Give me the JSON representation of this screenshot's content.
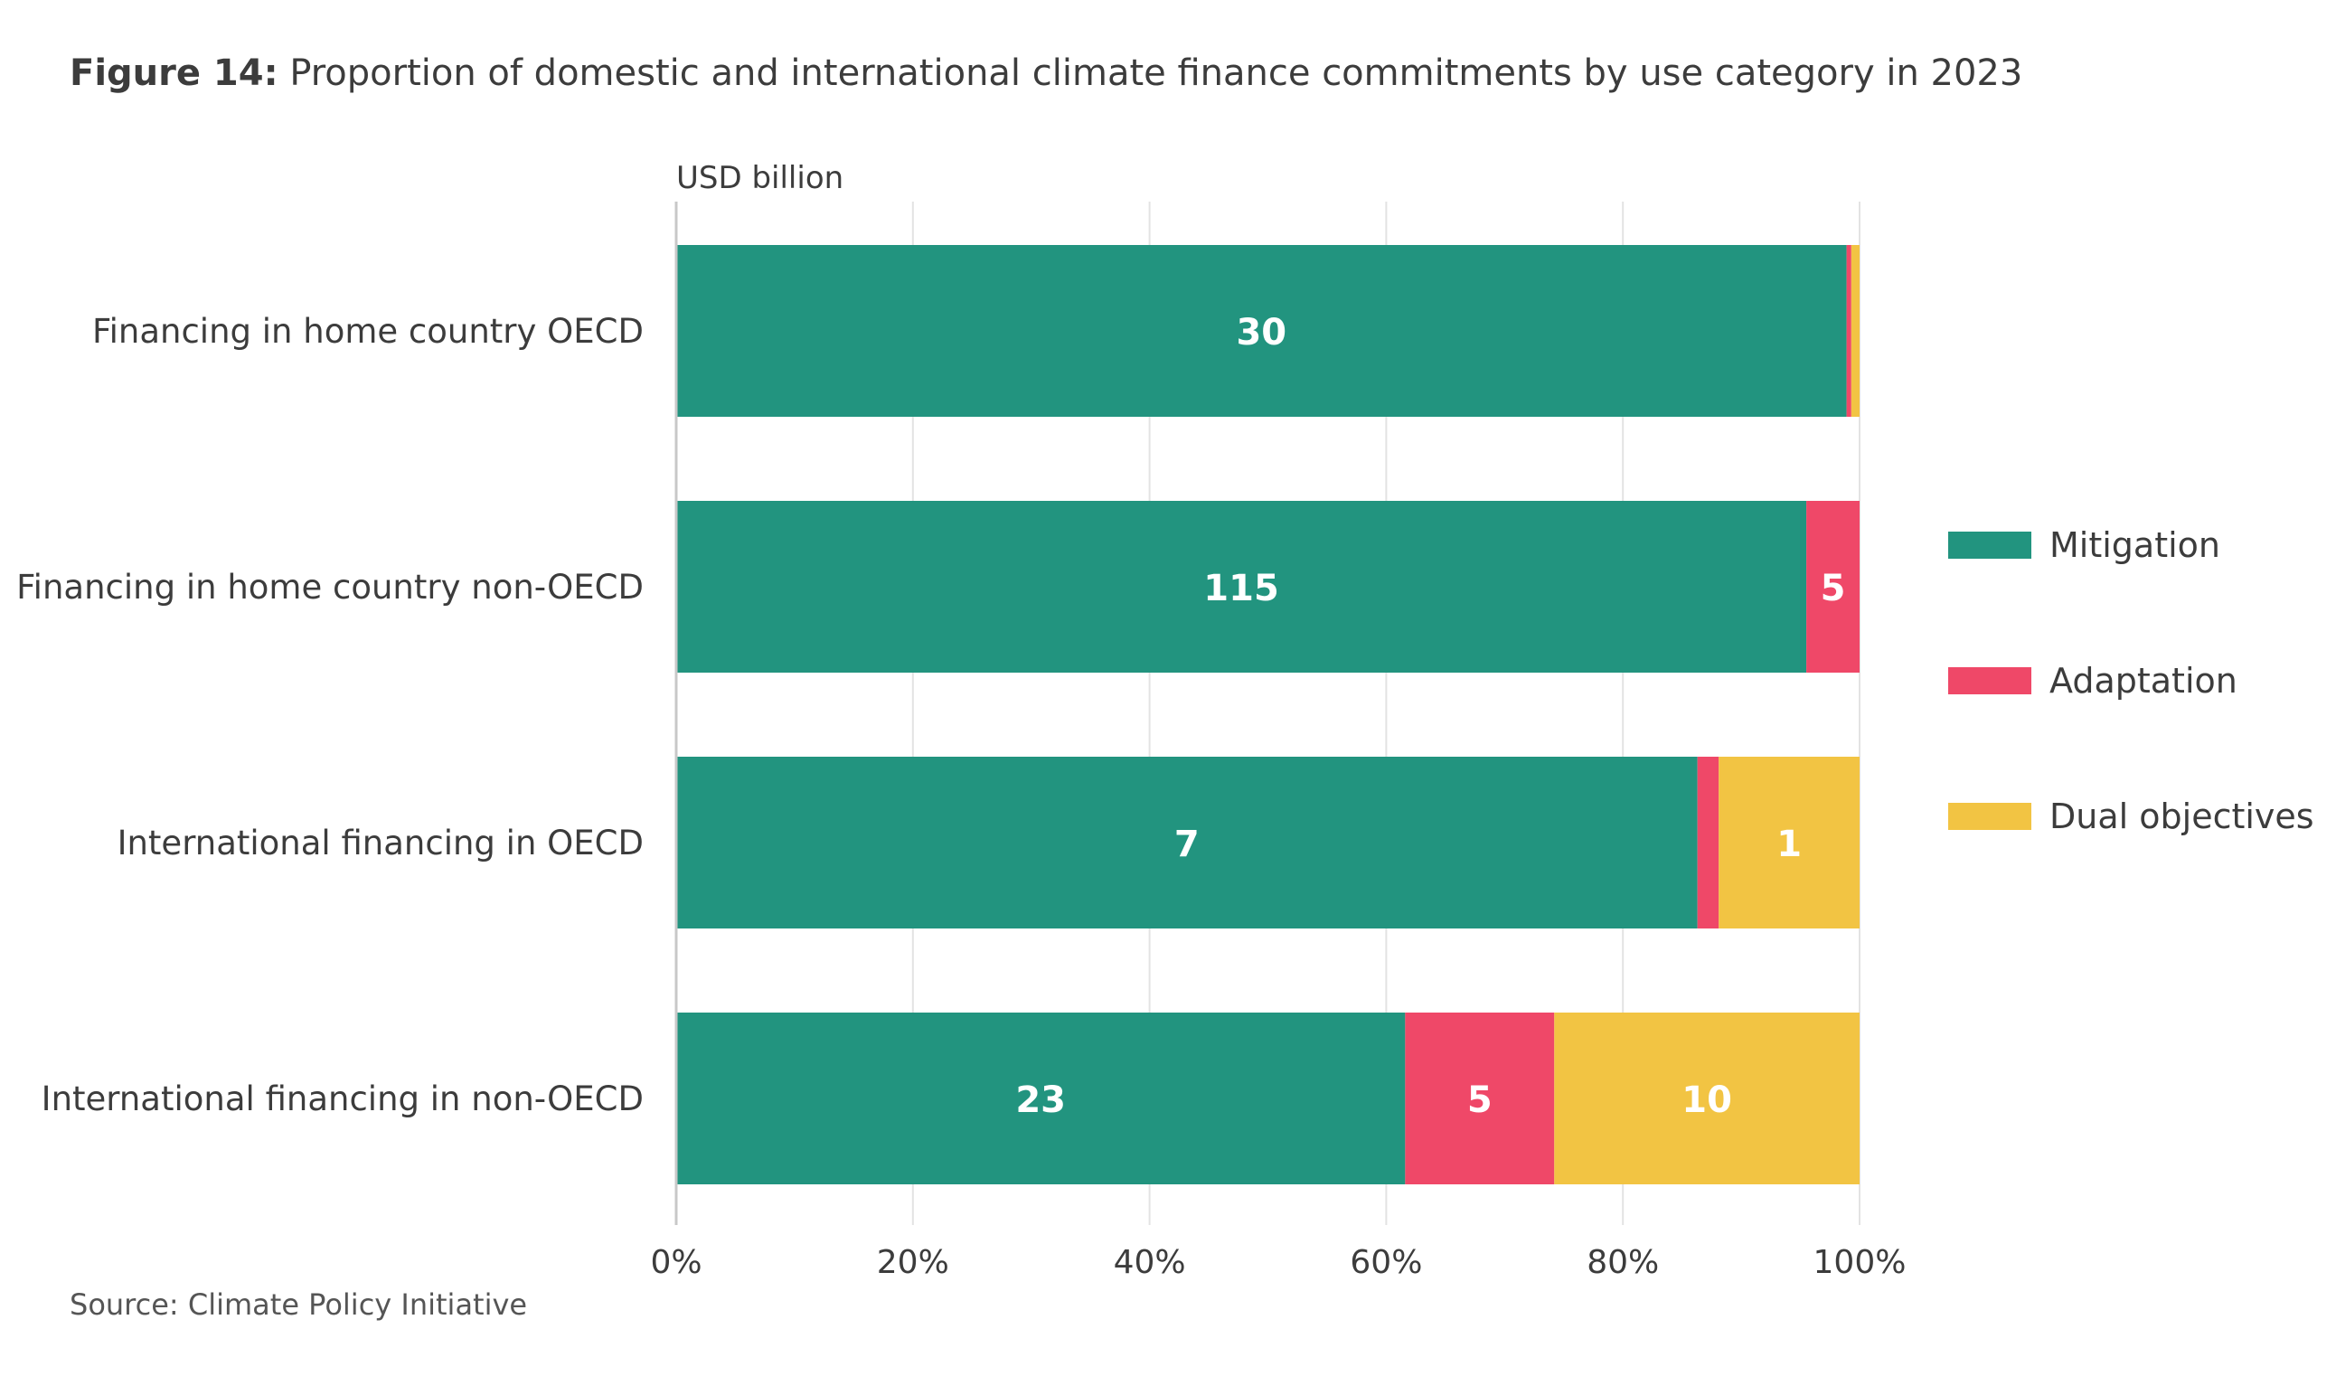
{
  "figure": {
    "label": "Figure 14:",
    "title": "Proportion of domestic and international climate finance commitments by use category in 2023"
  },
  "source": "Source: Climate Policy Initiative",
  "colors": {
    "mitigation": "#22947f",
    "adaptation": "#ef4868",
    "dual": "#f2c443",
    "grid": "#e3e3e3",
    "axis": "#c8c8c8",
    "text": "#3c3c3c"
  },
  "chart_data": {
    "type": "bar",
    "orientation": "horizontal",
    "stacked": true,
    "normalized": true,
    "unit_label": "USD billion",
    "categories": [
      "Financing in home country OECD",
      "Financing in home country non-OECD",
      "International financing in OECD",
      "International financing in non-OECD"
    ],
    "series": [
      {
        "name": "Mitigation",
        "color": "#22947f",
        "values": [
          30,
          115,
          7,
          23
        ],
        "labels": [
          "30",
          "115",
          "7",
          "23"
        ]
      },
      {
        "name": "Adaptation",
        "color": "#ef4868",
        "values": [
          0.1,
          5,
          0.1,
          5
        ],
        "labels": [
          "",
          "5",
          "",
          "5"
        ]
      },
      {
        "name": "Dual objectives",
        "color": "#f2c443",
        "values": [
          0.2,
          0,
          1,
          10
        ],
        "labels": [
          "",
          "",
          "1",
          "10"
        ]
      }
    ],
    "share_percent": [
      [
        98.9,
        0.4,
        0.7
      ],
      [
        95.5,
        4.5,
        0
      ],
      [
        86.3,
        1.8,
        11.9
      ],
      [
        61.6,
        12.6,
        25.8
      ]
    ],
    "xticks": [
      "0%",
      "20%",
      "40%",
      "60%",
      "80%",
      "100%"
    ],
    "xlim": [
      0,
      100
    ],
    "grid": true,
    "legend_position": "right"
  }
}
